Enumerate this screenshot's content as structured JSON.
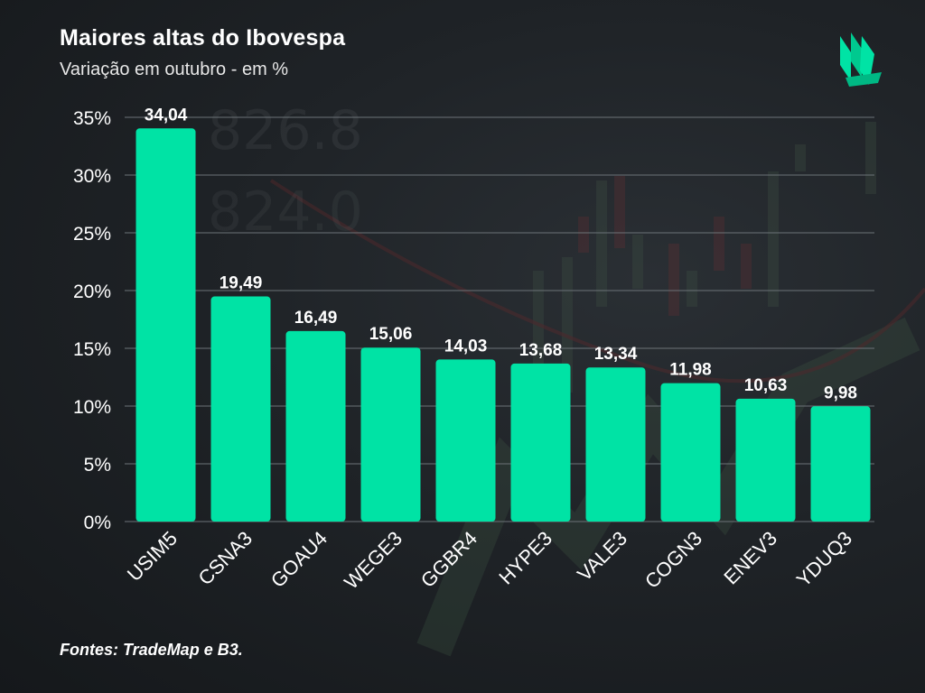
{
  "header": {
    "title": "Maiores altas do Ibovespa",
    "subtitle": "Variação em outubro - em %"
  },
  "footer": {
    "source": "Fontes: TradeMap e B3."
  },
  "colors": {
    "bar": "#00e3a5",
    "text": "#ffffff",
    "grid": "#6c7378",
    "background": "#1f2327"
  },
  "icons": {
    "logo": "green-stacked-books-logo"
  },
  "chart_data": {
    "type": "bar",
    "title": "Maiores altas do Ibovespa",
    "subtitle": "Variação em outubro - em %",
    "xlabel": "",
    "ylabel": "",
    "categories": [
      "USIM5",
      "CSNA3",
      "GOAU4",
      "WEGE3",
      "GGBR4",
      "HYPE3",
      "VALE3",
      "COGN3",
      "ENEV3",
      "YDUQ3"
    ],
    "values": [
      34.04,
      19.49,
      16.49,
      15.06,
      14.03,
      13.68,
      13.34,
      11.98,
      10.63,
      9.98
    ],
    "data_labels": [
      "34,04",
      "19,49",
      "16,49",
      "15,06",
      "14,03",
      "13,68",
      "13,34",
      "11,98",
      "10,63",
      "9,98"
    ],
    "ylim": [
      0,
      35
    ],
    "yticks": [
      0,
      5,
      10,
      15,
      20,
      25,
      30,
      35
    ],
    "ytick_labels": [
      "0%",
      "5%",
      "10%",
      "15%",
      "20%",
      "25%",
      "30%",
      "35%"
    ],
    "grid": true,
    "legend": "none"
  }
}
